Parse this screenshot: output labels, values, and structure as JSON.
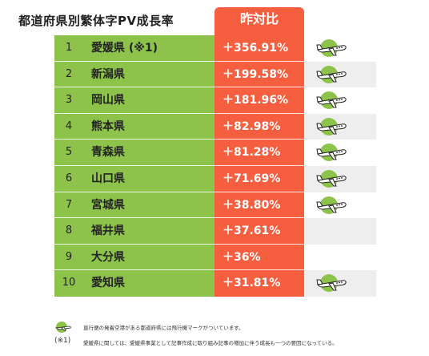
{
  "title": "都道府県別繁体字PV成長率",
  "yoy_header": "昨対比",
  "rows": [
    {
      "rank": "1",
      "prefecture": "愛媛県 (※1)",
      "yoy": "＋356.91%",
      "flight": true
    },
    {
      "rank": "2",
      "prefecture": "新潟県",
      "yoy": "＋199.58%",
      "flight": true
    },
    {
      "rank": "3",
      "prefecture": "岡山県",
      "yoy": "＋181.96%",
      "flight": true
    },
    {
      "rank": "4",
      "prefecture": "熊本県",
      "yoy": "＋82.98%",
      "flight": true
    },
    {
      "rank": "5",
      "prefecture": "青森県",
      "yoy": "＋81.28%",
      "flight": true
    },
    {
      "rank": "6",
      "prefecture": "山口県",
      "yoy": "＋71.69%",
      "flight": true
    },
    {
      "rank": "7",
      "prefecture": "宮城県",
      "yoy": "＋38.80%",
      "flight": true
    },
    {
      "rank": "8",
      "prefecture": "福井県",
      "yoy": "＋37.61%",
      "flight": false
    },
    {
      "rank": "9",
      "prefecture": "大分県",
      "yoy": "＋36%",
      "flight": false
    },
    {
      "rank": "10",
      "prefecture": "愛知県",
      "yoy": "＋31.81%",
      "flight": true
    }
  ],
  "notes": {
    "flight_note": "直行便の発着空港がある都道府県には飛行機マークがついています。",
    "note_marker": "(※1)",
    "ehime_note": "愛媛県に関しては、愛媛県事業として記事作成に取り組み記事の増加に伴う成長も一つの要因になっている。"
  },
  "icons": {
    "flight": "airplane-icon"
  },
  "colors": {
    "green": "#8dc34a",
    "orange": "#f55f40",
    "icon_circle": "#8dc34a"
  }
}
